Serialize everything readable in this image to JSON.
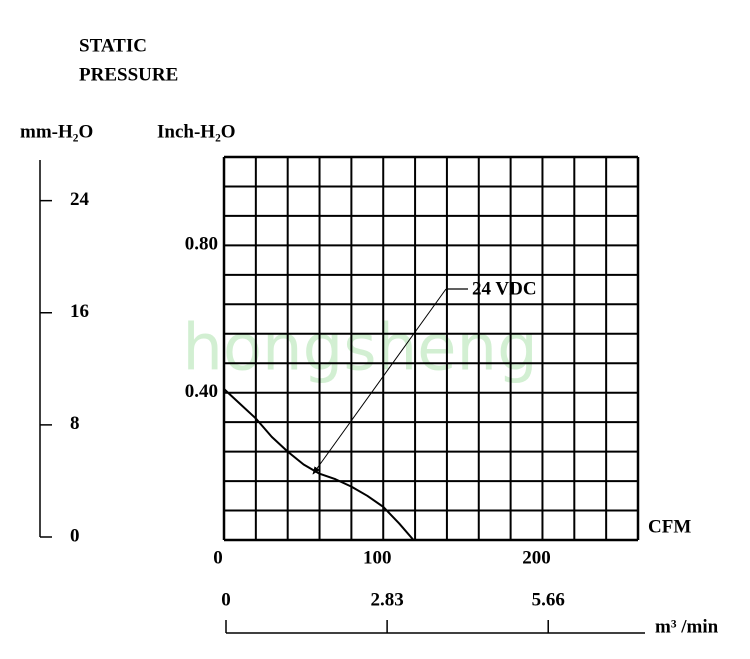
{
  "chart_data": {
    "type": "line",
    "title_lines": [
      "STATIC",
      "PRESSURE"
    ],
    "ylabel": "Inch-H₂O",
    "y2label": "mm-H₂O",
    "xlabel": "CFM",
    "x2label": "m³ /min",
    "watermark": "hongsheng",
    "annotation": "24 VDC",
    "xlim": [
      0,
      260
    ],
    "xticks": [
      0,
      100,
      200
    ],
    "xgrid": [
      0,
      20,
      40,
      60,
      80,
      100,
      120,
      140,
      160,
      180,
      200,
      220,
      240,
      260
    ],
    "ylim": [
      0,
      1.04
    ],
    "yticks": [
      {
        "value": 0.4,
        "label": "0.40"
      },
      {
        "value": 0.8,
        "label": "0.80"
      }
    ],
    "ygrid": [
      0,
      0.08,
      0.16,
      0.24,
      0.32,
      0.4,
      0.48,
      0.56,
      0.64,
      0.72,
      0.8,
      0.88,
      0.96,
      1.04
    ],
    "y2lim": [
      0,
      26.9
    ],
    "y2ticks": [
      0,
      8,
      16,
      24
    ],
    "x2lim": [
      0,
      7.36
    ],
    "x2ticks": [
      0,
      2.83,
      5.66
    ],
    "grid": true,
    "series": [
      {
        "name": "24 VDC",
        "color": "#000000",
        "x": [
          0,
          10,
          20,
          30,
          40,
          50,
          60,
          70,
          80,
          90,
          100,
          110,
          119
        ],
        "values": [
          0.41,
          0.37,
          0.33,
          0.28,
          0.24,
          0.205,
          0.18,
          0.165,
          0.145,
          0.12,
          0.09,
          0.045,
          0
        ]
      }
    ]
  }
}
